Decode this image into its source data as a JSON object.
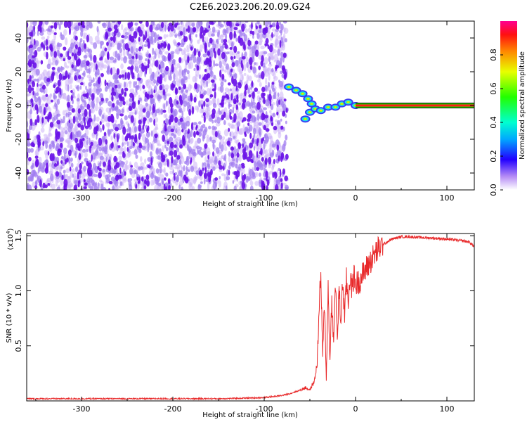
{
  "title": "C2E6.2023.206.20.09.G24",
  "chart_data": [
    {
      "type": "heatmap",
      "xlabel": "Height of straight line (km)",
      "ylabel": "Frequency (Hz)",
      "xlim": [
        -360,
        130
      ],
      "ylim": [
        -50,
        50
      ],
      "x_ticks": [
        -300,
        -200,
        -100,
        0,
        100
      ],
      "x_tick_labels": [
        "-300",
        "-200",
        "-100",
        "0",
        "100"
      ],
      "y_ticks": [
        -40,
        -20,
        0,
        20,
        40
      ],
      "y_tick_labels": [
        "-40",
        "-20",
        "0",
        "20",
        "40"
      ],
      "noise_region_x": [
        -360,
        -75
      ],
      "signal_track": [
        {
          "x": -73,
          "y": 11
        },
        {
          "x": -65,
          "y": 9
        },
        {
          "x": -58,
          "y": 7
        },
        {
          "x": -52,
          "y": 4
        },
        {
          "x": -48,
          "y": 1
        },
        {
          "x": -50,
          "y": -4
        },
        {
          "x": -55,
          "y": -8
        },
        {
          "x": -44,
          "y": -2
        },
        {
          "x": -38,
          "y": -3
        },
        {
          "x": -30,
          "y": -1
        },
        {
          "x": -22,
          "y": -1
        },
        {
          "x": -15,
          "y": 1
        },
        {
          "x": -8,
          "y": 2
        },
        {
          "x": 0,
          "y": 0
        }
      ],
      "steady_line": {
        "x_start": 0,
        "x_end": 130,
        "y": 0
      },
      "colorbar": {
        "label": "Normalized spectral amplitude",
        "range": [
          0,
          1
        ],
        "ticks": [
          0.0,
          0.2,
          0.4,
          0.6,
          0.8
        ],
        "tick_labels": [
          "0.0",
          "0.2",
          "0.4",
          "0.6",
          "0.8"
        ]
      }
    },
    {
      "type": "line",
      "xlabel": "Height of straight line (km)",
      "ylabel": "SNR (10 * v/v)",
      "scale_label": "(x10",
      "scale_exponent": "4",
      "scale_close": ")",
      "xlim": [
        -360,
        130
      ],
      "ylim": [
        0,
        1.52
      ],
      "x_ticks": [
        -300,
        -200,
        -100,
        0,
        100
      ],
      "x_tick_labels": [
        "-300",
        "-200",
        "-100",
        "0",
        "100"
      ],
      "y_ticks": [
        0.5,
        1.0,
        1.5
      ],
      "y_tick_labels": [
        "0.5",
        "1.0",
        "1.5"
      ],
      "series": [
        {
          "color": "#e8292a",
          "x": [
            -360,
            -300,
            -250,
            -200,
            -150,
            -120,
            -100,
            -90,
            -80,
            -70,
            -60,
            -55,
            -50,
            -45,
            -42,
            -40,
            -38,
            -36,
            -34,
            -32,
            -30,
            -28,
            -26,
            -24,
            -22,
            -20,
            -18,
            -16,
            -14,
            -12,
            -10,
            -8,
            -6,
            -4,
            -2,
            0,
            5,
            10,
            15,
            20,
            25,
            30,
            40,
            50,
            60,
            80,
            100,
            110,
            120,
            125,
            130
          ],
          "y": [
            0.02,
            0.02,
            0.02,
            0.02,
            0.02,
            0.025,
            0.03,
            0.04,
            0.05,
            0.07,
            0.1,
            0.12,
            0.1,
            0.18,
            0.35,
            0.8,
            1.15,
            0.4,
            0.9,
            0.2,
            1.05,
            0.35,
            0.95,
            0.5,
            1.1,
            0.55,
            1.0,
            0.7,
            1.1,
            0.75,
            1.1,
            0.9,
            1.15,
            1.0,
            1.15,
            1.05,
            1.1,
            1.18,
            1.25,
            1.32,
            1.38,
            1.42,
            1.47,
            1.49,
            1.49,
            1.48,
            1.47,
            1.46,
            1.45,
            1.44,
            1.4
          ]
        }
      ]
    }
  ]
}
